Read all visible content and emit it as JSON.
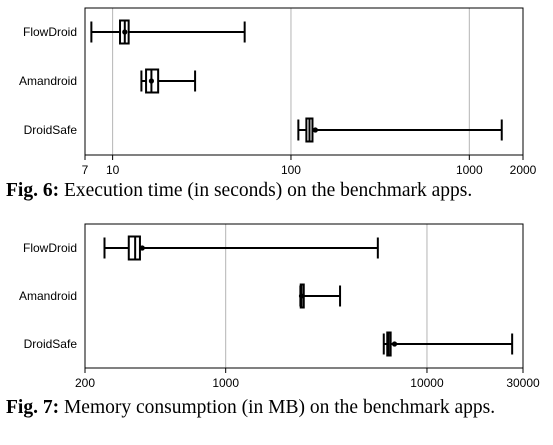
{
  "figures": [
    {
      "caption_number": "Fig. 6",
      "caption_text": "Execution time (in seconds) on the benchmark apps.",
      "chart_data": {
        "type": "boxplot",
        "scale": "log",
        "xlim": [
          7,
          2000
        ],
        "tick_values": [
          7,
          10,
          100,
          1000,
          2000
        ],
        "tick_labels": [
          "7",
          "10",
          "100",
          "1000",
          "2000"
        ],
        "grid": "vertical at 10, 100, 1000",
        "legend": "none",
        "rows": [
          {
            "label": "FlowDroid",
            "whisker_low": 7.6,
            "q1": 11.0,
            "median": 11.7,
            "q3": 12.3,
            "whisker_high": 55,
            "mean": 11.7
          },
          {
            "label": "Amandroid",
            "whisker_low": 14.5,
            "q1": 15.4,
            "median": 16.5,
            "q3": 18.0,
            "whisker_high": 29,
            "mean": 16.5
          },
          {
            "label": "DroidSafe",
            "whisker_low": 110,
            "q1": 122,
            "median": 127,
            "q3": 132,
            "whisker_high": 1520,
            "mean": 137
          }
        ]
      }
    },
    {
      "caption_number": "Fig. 7",
      "caption_text": "Memory consumption (in MB) on the benchmark apps.",
      "chart_data": {
        "type": "boxplot",
        "scale": "log",
        "xlim": [
          200,
          30000
        ],
        "tick_values": [
          200,
          1000,
          10000,
          30000
        ],
        "tick_labels": [
          "200",
          "1000",
          "10000",
          "30000"
        ],
        "grid": "vertical at 1000, 10000",
        "legend": "none",
        "rows": [
          {
            "label": "FlowDroid",
            "whisker_low": 250,
            "q1": 330,
            "median": 355,
            "q3": 375,
            "whisker_high": 5700,
            "mean": 385
          },
          {
            "label": "Amandroid",
            "whisker_low": 2350,
            "q1": 2360,
            "median": 2380,
            "q3": 2420,
            "whisker_high": 3700,
            "mean": 2380
          },
          {
            "label": "DroidSafe",
            "whisker_low": 6100,
            "q1": 6350,
            "median": 6450,
            "q3": 6600,
            "whisker_high": 26500,
            "mean": 6900
          }
        ]
      }
    }
  ]
}
